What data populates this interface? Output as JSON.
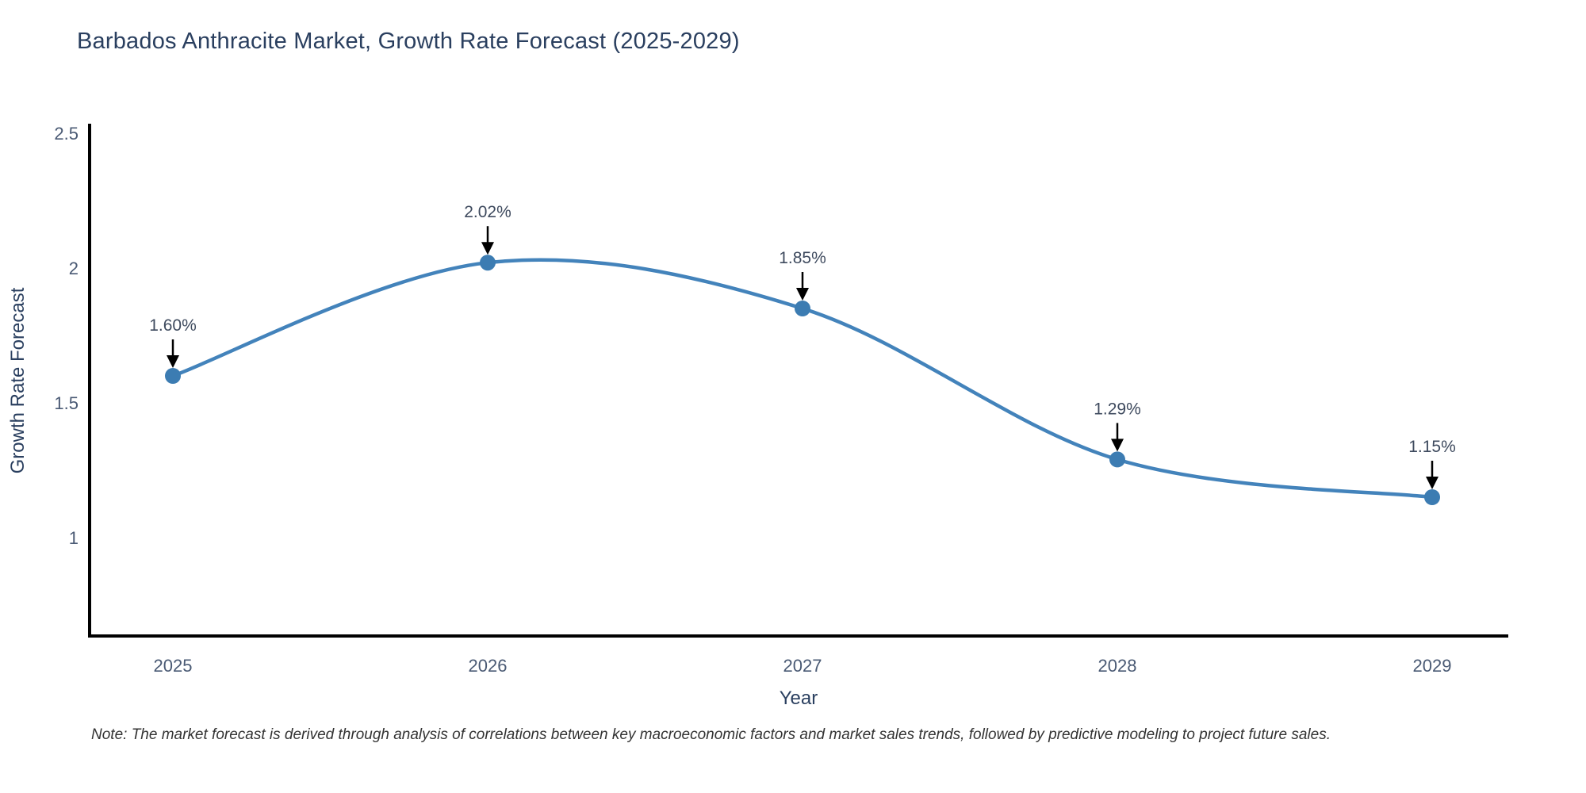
{
  "chart_data": {
    "type": "line",
    "title": "Barbados Anthracite Market, Growth Rate Forecast (2025-2029)",
    "xlabel": "Year",
    "ylabel": "Growth Rate Forecast",
    "categories": [
      "2025",
      "2026",
      "2027",
      "2028",
      "2029"
    ],
    "values": [
      1.6,
      2.02,
      1.85,
      1.29,
      1.15
    ],
    "point_labels": [
      "1.60%",
      "2.02%",
      "1.85%",
      "1.29%",
      "1.15%"
    ],
    "series_name": "Growth Rate Forecast",
    "yticks": [
      1,
      1.5,
      2,
      2.5
    ],
    "ytick_labels": [
      "1",
      "1.5",
      "2",
      "2.5"
    ],
    "ylim": [
      0.63,
      2.53
    ],
    "grid": false,
    "legend_position": "none",
    "line_shape": "spline",
    "annotation_style": "value label with down arrow to marker",
    "note": "Note: The market forecast is derived through analysis of correlations between key macroeconomic factors and market sales trends, followed by predictive modeling to project future sales.",
    "colors": {
      "line": "#4383bb",
      "marker": "#3c7cb2",
      "axis": "#000000",
      "arrow": "#000000",
      "title_text": "#2a3f5f",
      "axis_title_text": "#2a3f5f",
      "tick_text": "#4a5a74",
      "annotation_text": "#3e4a5e",
      "note_text": "#333333",
      "background": "#ffffff"
    }
  }
}
